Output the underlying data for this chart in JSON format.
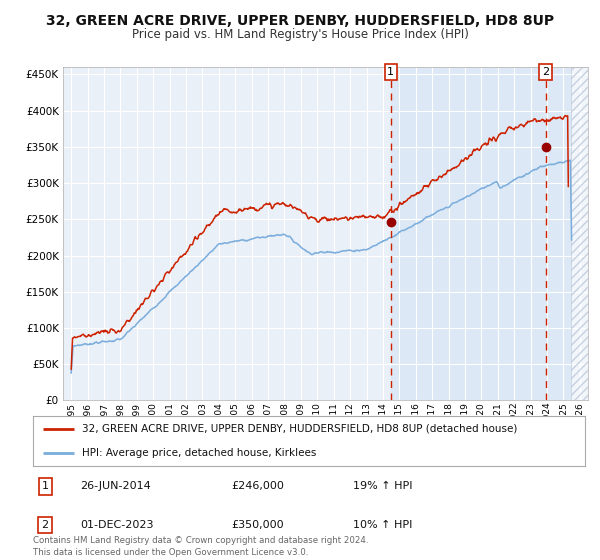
{
  "title": "32, GREEN ACRE DRIVE, UPPER DENBY, HUDDERSFIELD, HD8 8UP",
  "subtitle": "Price paid vs. HM Land Registry's House Price Index (HPI)",
  "title_fontsize": 10,
  "subtitle_fontsize": 8.5,
  "ylim": [
    0,
    460000
  ],
  "yticks": [
    0,
    50000,
    100000,
    150000,
    200000,
    250000,
    300000,
    350000,
    400000,
    450000
  ],
  "ytick_labels": [
    "£0",
    "£50K",
    "£100K",
    "£150K",
    "£200K",
    "£250K",
    "£300K",
    "£350K",
    "£400K",
    "£450K"
  ],
  "xlim_start": 1994.5,
  "xlim_end": 2026.5,
  "xtick_years": [
    1995,
    1996,
    1997,
    1998,
    1999,
    2000,
    2001,
    2002,
    2003,
    2004,
    2005,
    2006,
    2007,
    2008,
    2009,
    2010,
    2011,
    2012,
    2013,
    2014,
    2015,
    2016,
    2017,
    2018,
    2019,
    2020,
    2021,
    2022,
    2023,
    2024,
    2025,
    2026
  ],
  "hpi_color": "#7aaddc",
  "price_color": "#cc2200",
  "marker_color": "#990000",
  "background_color": "#ffffff",
  "plot_bg_color": "#eaf0f8",
  "grid_color": "#ffffff",
  "shade_color": "#dce8f5",
  "shade_start": 2014.48,
  "shade_end": 2026.5,
  "hatch_start": 2025.48,
  "vline1_x": 2014.48,
  "vline2_x": 2023.92,
  "marker1_x": 2014.48,
  "marker1_y": 246000,
  "marker2_x": 2023.92,
  "marker2_y": 350000,
  "legend_line1": "32, GREEN ACRE DRIVE, UPPER DENBY, HUDDERSFIELD, HD8 8UP (detached house)",
  "legend_line2": "HPI: Average price, detached house, Kirklees",
  "note1_label": "1",
  "note1_date": "26-JUN-2014",
  "note1_price": "£246,000",
  "note1_hpi": "19% ↑ HPI",
  "note2_label": "2",
  "note2_date": "01-DEC-2023",
  "note2_price": "£350,000",
  "note2_hpi": "10% ↑ HPI",
  "footer": "Contains HM Land Registry data © Crown copyright and database right 2024.\nThis data is licensed under the Open Government Licence v3.0."
}
